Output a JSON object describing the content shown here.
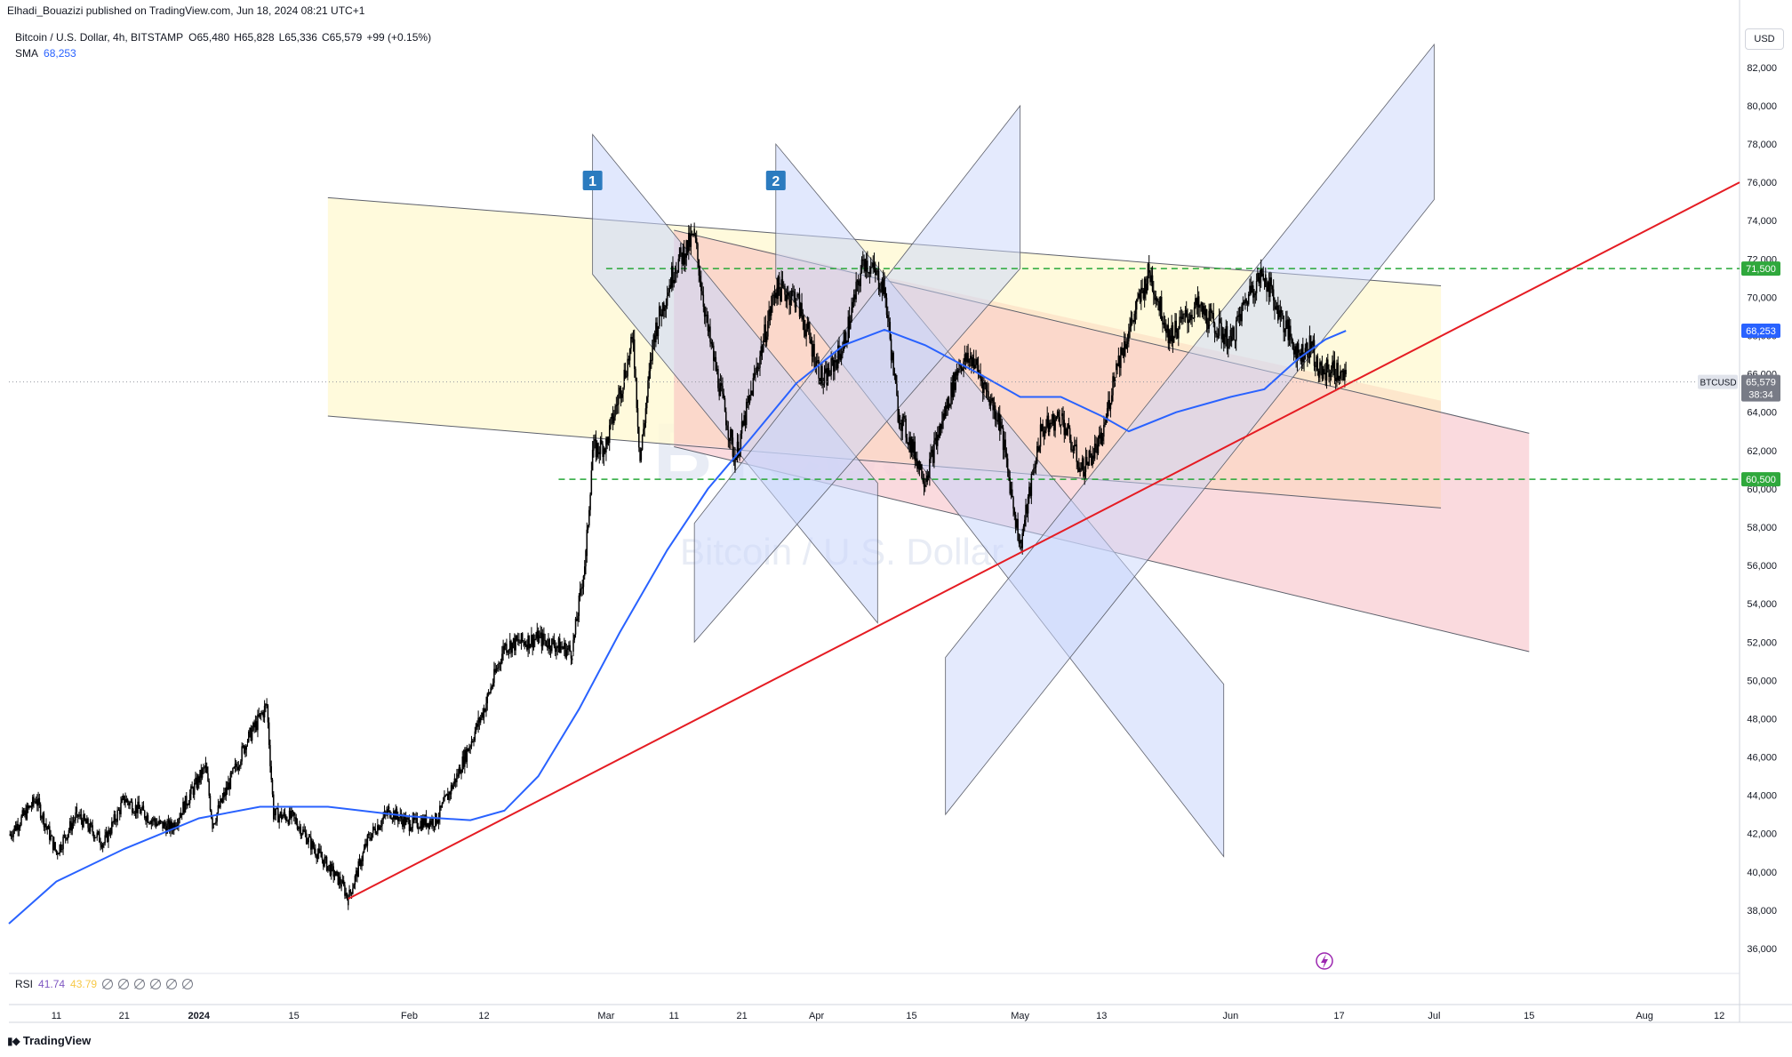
{
  "header": {
    "published_by": "Elhadi_Bouazizi published on TradingView.com, Jun 18, 2024 08:21 UTC+1"
  },
  "legend": {
    "symbol_title": "Bitcoin / U.S. Dollar, 4h, BITSTAMP",
    "open": "O65,480",
    "high": "H65,828",
    "low": "L65,336",
    "close": "C65,579",
    "change": "+99 (+0.15%)",
    "sma_label": "SMA",
    "sma_value": "68,253"
  },
  "rsi": {
    "label": "RSI",
    "value1": "41.74",
    "value2": "43.79"
  },
  "currency_button": "USD",
  "watermark": {
    "ticker": "BTCUSD",
    "name": "Bitcoin / U.S. Dollar"
  },
  "footer": {
    "brand": "TradingView"
  },
  "colors": {
    "candle": "#000000",
    "sma": "#2962ff",
    "trendline": "#e51c23",
    "level_line": "#26a737",
    "channel_yellow": "#fff9d6",
    "channel_red": "#f9d3d8",
    "channel_orange": "#fbd7c0",
    "channel_blue": "#c9d6fb",
    "channel_purple": "#b7a9e0",
    "badge_blue": "#2b7bbf",
    "price_tag_current": "#787b86",
    "price_tag_sma": "#2962ff",
    "price_tag_level": "#2fa83c"
  },
  "chart_data": {
    "type": "candlestick",
    "symbol": "BTCUSD",
    "timeframe": "4h",
    "exchange": "BITSTAMP",
    "y_axis": {
      "ylim": [
        34700,
        84500
      ],
      "ticks": [
        36000,
        38000,
        40000,
        42000,
        44000,
        46000,
        48000,
        50000,
        52000,
        54000,
        56000,
        58000,
        60000,
        62000,
        64000,
        66000,
        68000,
        70000,
        72000,
        74000,
        76000,
        78000,
        80000,
        82000
      ],
      "tick_labels": [
        "36,000",
        "38,000",
        "40,000",
        "42,000",
        "44,000",
        "46,000",
        "48,000",
        "50,000",
        "52,000",
        "54,000",
        "56,000",
        "58,000",
        "60,000",
        "62,000",
        "64,000",
        "66,000",
        "68,000",
        "70,000",
        "72,000",
        "74,000",
        "76,000",
        "78,000",
        "80,000",
        "82,000"
      ]
    },
    "x_axis": {
      "start_date": "2023-12-04",
      "end_date": "2024-08-15",
      "tick_labels": [
        {
          "date": "2023-12-11",
          "label": "11"
        },
        {
          "date": "2023-12-21",
          "label": "21"
        },
        {
          "date": "2024-01-01",
          "label": "2024"
        },
        {
          "date": "2024-01-15",
          "label": "15"
        },
        {
          "date": "2024-02-01",
          "label": "Feb"
        },
        {
          "date": "2024-02-12",
          "label": "12"
        },
        {
          "date": "2024-03-01",
          "label": "Mar"
        },
        {
          "date": "2024-03-11",
          "label": "11"
        },
        {
          "date": "2024-03-21",
          "label": "21"
        },
        {
          "date": "2024-04-01",
          "label": "Apr"
        },
        {
          "date": "2024-04-15",
          "label": "15"
        },
        {
          "date": "2024-05-01",
          "label": "May"
        },
        {
          "date": "2024-05-13",
          "label": "13"
        },
        {
          "date": "2024-06-01",
          "label": "Jun"
        },
        {
          "date": "2024-06-17",
          "label": "17"
        },
        {
          "date": "2024-07-01",
          "label": "Jul"
        },
        {
          "date": "2024-07-15",
          "label": "15"
        },
        {
          "date": "2024-08-01",
          "label": "Aug"
        },
        {
          "date": "2024-08-12",
          "label": "12"
        }
      ]
    },
    "price_keypoints": [
      {
        "date": "2023-12-04",
        "price": 41900
      },
      {
        "date": "2023-12-08",
        "price": 43800
      },
      {
        "date": "2023-12-11",
        "price": 41000
      },
      {
        "date": "2023-12-14",
        "price": 43000
      },
      {
        "date": "2023-12-18",
        "price": 41500
      },
      {
        "date": "2023-12-21",
        "price": 43800
      },
      {
        "date": "2023-12-26",
        "price": 42500
      },
      {
        "date": "2023-12-28",
        "price": 42300
      },
      {
        "date": "2024-01-02",
        "price": 45500
      },
      {
        "date": "2024-01-03",
        "price": 42500
      },
      {
        "date": "2024-01-08",
        "price": 46800
      },
      {
        "date": "2024-01-11",
        "price": 48700
      },
      {
        "date": "2024-01-12",
        "price": 43000
      },
      {
        "date": "2024-01-15",
        "price": 42800
      },
      {
        "date": "2024-01-18",
        "price": 41200
      },
      {
        "date": "2024-01-22",
        "price": 39400
      },
      {
        "date": "2024-01-23",
        "price": 38600
      },
      {
        "date": "2024-01-26",
        "price": 41800
      },
      {
        "date": "2024-01-29",
        "price": 43200
      },
      {
        "date": "2024-02-01",
        "price": 42500
      },
      {
        "date": "2024-02-05",
        "price": 42700
      },
      {
        "date": "2024-02-08",
        "price": 45000
      },
      {
        "date": "2024-02-12",
        "price": 48500
      },
      {
        "date": "2024-02-15",
        "price": 51800
      },
      {
        "date": "2024-02-20",
        "price": 52200
      },
      {
        "date": "2024-02-25",
        "price": 51500
      },
      {
        "date": "2024-02-27",
        "price": 56500
      },
      {
        "date": "2024-02-28",
        "price": 62000
      },
      {
        "date": "2024-03-01",
        "price": 62300
      },
      {
        "date": "2024-03-05",
        "price": 67800
      },
      {
        "date": "2024-03-06",
        "price": 61500
      },
      {
        "date": "2024-03-08",
        "price": 68000
      },
      {
        "date": "2024-03-11",
        "price": 71500
      },
      {
        "date": "2024-03-14",
        "price": 73200
      },
      {
        "date": "2024-03-16",
        "price": 68200
      },
      {
        "date": "2024-03-20",
        "price": 61500
      },
      {
        "date": "2024-03-22",
        "price": 64500
      },
      {
        "date": "2024-03-26",
        "price": 70500
      },
      {
        "date": "2024-03-29",
        "price": 70000
      },
      {
        "date": "2024-04-02",
        "price": 65500
      },
      {
        "date": "2024-04-05",
        "price": 67500
      },
      {
        "date": "2024-04-08",
        "price": 72000
      },
      {
        "date": "2024-04-11",
        "price": 70500
      },
      {
        "date": "2024-04-13",
        "price": 64000
      },
      {
        "date": "2024-04-17",
        "price": 60500
      },
      {
        "date": "2024-04-22",
        "price": 66500
      },
      {
        "date": "2024-04-24",
        "price": 66800
      },
      {
        "date": "2024-04-28",
        "price": 63500
      },
      {
        "date": "2024-05-01",
        "price": 57000
      },
      {
        "date": "2024-05-04",
        "price": 63000
      },
      {
        "date": "2024-05-07",
        "price": 63800
      },
      {
        "date": "2024-05-10",
        "price": 61000
      },
      {
        "date": "2024-05-13",
        "price": 62500
      },
      {
        "date": "2024-05-15",
        "price": 66200
      },
      {
        "date": "2024-05-20",
        "price": 71300
      },
      {
        "date": "2024-05-23",
        "price": 68000
      },
      {
        "date": "2024-05-27",
        "price": 69500
      },
      {
        "date": "2024-06-01",
        "price": 67700
      },
      {
        "date": "2024-06-04",
        "price": 70500
      },
      {
        "date": "2024-06-06",
        "price": 71200
      },
      {
        "date": "2024-06-08",
        "price": 69300
      },
      {
        "date": "2024-06-11",
        "price": 67000
      },
      {
        "date": "2024-06-13",
        "price": 67500
      },
      {
        "date": "2024-06-14",
        "price": 66000
      },
      {
        "date": "2024-06-16",
        "price": 66300
      },
      {
        "date": "2024-06-18",
        "price": 65579
      }
    ],
    "sma_keypoints": [
      {
        "date": "2023-12-04",
        "price": 37300
      },
      {
        "date": "2023-12-11",
        "price": 39500
      },
      {
        "date": "2023-12-21",
        "price": 41200
      },
      {
        "date": "2024-01-01",
        "price": 42800
      },
      {
        "date": "2024-01-10",
        "price": 43400
      },
      {
        "date": "2024-01-20",
        "price": 43400
      },
      {
        "date": "2024-02-01",
        "price": 42900
      },
      {
        "date": "2024-02-10",
        "price": 42700
      },
      {
        "date": "2024-02-15",
        "price": 43200
      },
      {
        "date": "2024-02-20",
        "price": 45000
      },
      {
        "date": "2024-02-26",
        "price": 48500
      },
      {
        "date": "2024-03-03",
        "price": 52500
      },
      {
        "date": "2024-03-10",
        "price": 56800
      },
      {
        "date": "2024-03-16",
        "price": 60000
      },
      {
        "date": "2024-03-22",
        "price": 62500
      },
      {
        "date": "2024-03-29",
        "price": 65500
      },
      {
        "date": "2024-04-05",
        "price": 67500
      },
      {
        "date": "2024-04-11",
        "price": 68300
      },
      {
        "date": "2024-04-17",
        "price": 67500
      },
      {
        "date": "2024-04-25",
        "price": 66000
      },
      {
        "date": "2024-05-01",
        "price": 64800
      },
      {
        "date": "2024-05-07",
        "price": 64800
      },
      {
        "date": "2024-05-13",
        "price": 63800
      },
      {
        "date": "2024-05-17",
        "price": 63000
      },
      {
        "date": "2024-05-24",
        "price": 64000
      },
      {
        "date": "2024-06-01",
        "price": 64800
      },
      {
        "date": "2024-06-06",
        "price": 65200
      },
      {
        "date": "2024-06-11",
        "price": 66800
      },
      {
        "date": "2024-06-15",
        "price": 67800
      },
      {
        "date": "2024-06-18",
        "price": 68253
      }
    ],
    "trendline": [
      {
        "date": "2024-01-23",
        "price": 38600
      },
      {
        "date": "2024-08-15",
        "price": 76000
      }
    ],
    "horizontal_levels": [
      {
        "price": 71500,
        "label": "71,500",
        "from_date": "2024-03-01"
      },
      {
        "price": 60500,
        "label": "60,500",
        "from_date": "2024-02-23"
      }
    ],
    "channels": [
      {
        "name": "yellow",
        "p1": {
          "date": "2024-01-20",
          "price": 75200
        },
        "p2": {
          "date": "2024-07-02",
          "price": 70600
        },
        "p3": {
          "date": "2024-01-20",
          "price": 63800
        },
        "p4": {
          "date": "2024-07-02",
          "price": 59000
        }
      },
      {
        "name": "red",
        "p1": {
          "date": "2024-03-11",
          "price": 73500
        },
        "p2": {
          "date": "2024-07-15",
          "price": 62900
        },
        "p3": {
          "date": "2024-03-11",
          "price": 62200
        },
        "p4": {
          "date": "2024-07-15",
          "price": 51500
        }
      }
    ],
    "price_tags": [
      {
        "label": "71,500",
        "price": 71500,
        "kind": "level"
      },
      {
        "label": "68,253",
        "price": 68253,
        "kind": "sma"
      },
      {
        "label": "65,579",
        "price": 65579,
        "kind": "current",
        "symbol": "BTCUSD",
        "countdown": "38:34"
      },
      {
        "label": "60,500",
        "price": 60500,
        "kind": "level"
      }
    ],
    "badges": [
      {
        "label": "1",
        "date": "2024-02-28",
        "price": 76100
      },
      {
        "label": "2",
        "date": "2024-03-26",
        "price": 76100
      }
    ]
  }
}
